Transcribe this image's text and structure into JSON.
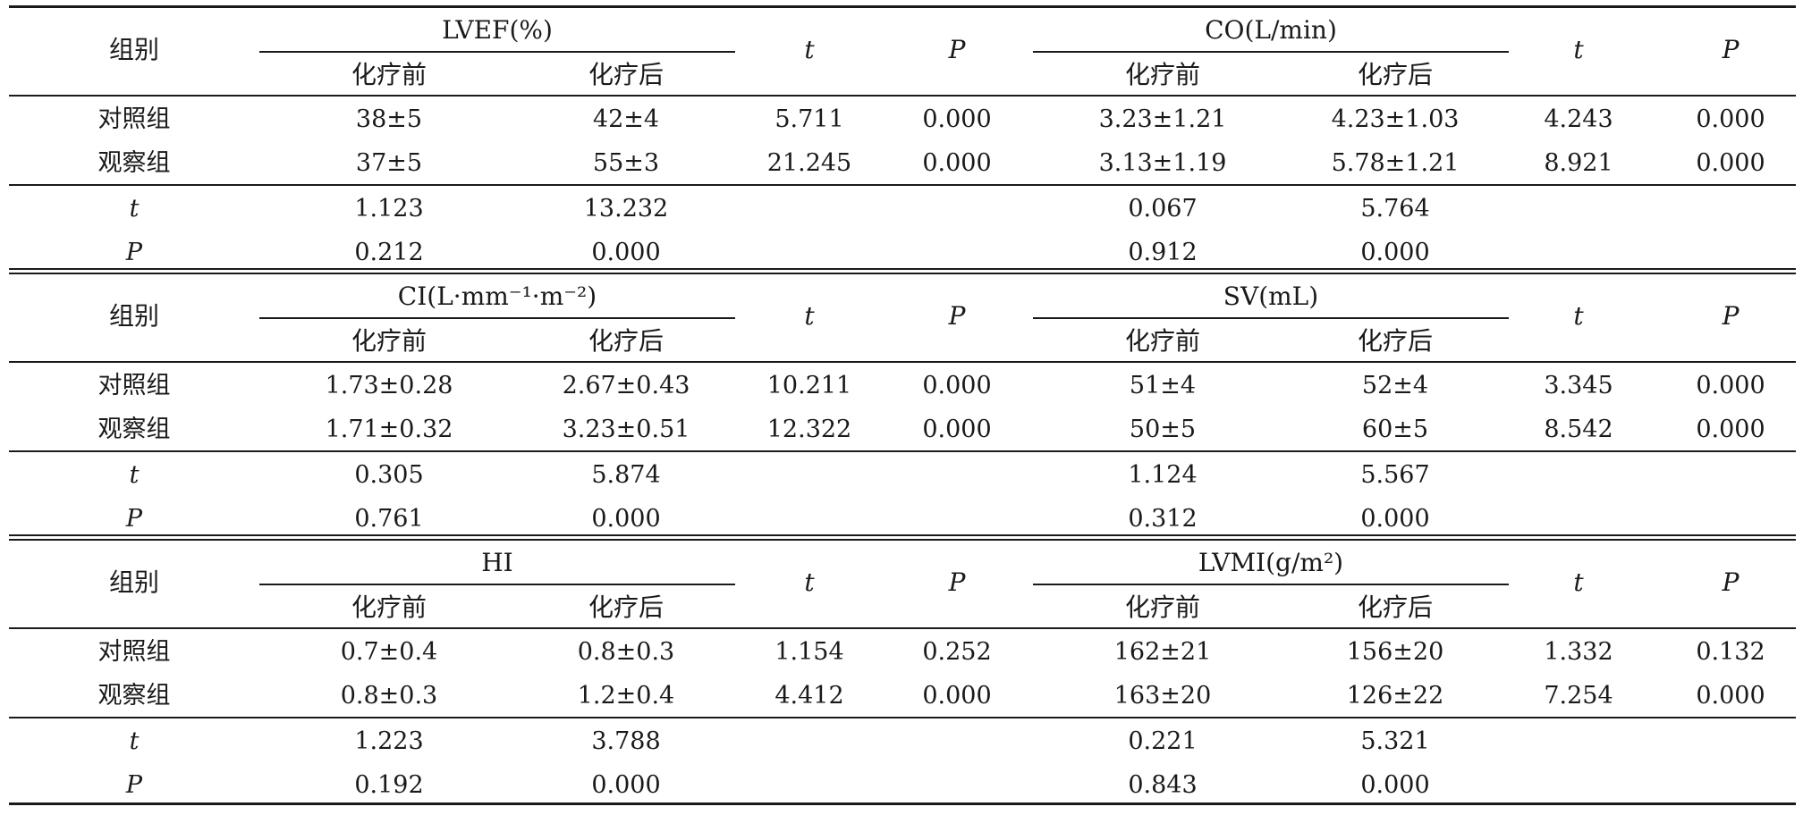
{
  "group_label": "组别",
  "before_label": "化疗前",
  "after_label": "化疗后",
  "t_label": "t",
  "p_label": "P",
  "row_labels": {
    "control": "对照组",
    "observe": "观察组"
  },
  "sections": [
    {
      "param_left": "LVEF(%)",
      "param_right": "CO(L/min)",
      "rows": [
        [
          "对照组",
          "38±5",
          "42±4",
          "5.711",
          "0.000",
          "3.23±1.21",
          "4.23±1.03",
          "4.243",
          "0.000"
        ],
        [
          "观察组",
          "37±5",
          "55±3",
          "21.245",
          "0.000",
          "3.13±1.19",
          "5.78±1.21",
          "8.921",
          "0.000"
        ]
      ],
      "t_row": [
        "t",
        "1.123",
        "13.232",
        "0.067",
        "5.764"
      ],
      "p_row": [
        "P",
        "0.212",
        "0.000",
        "0.912",
        "0.000"
      ]
    },
    {
      "param_left": "CI(L·mm⁻¹·m⁻²)",
      "param_right": "SV(mL)",
      "rows": [
        [
          "对照组",
          "1.73±0.28",
          "2.67±0.43",
          "10.211",
          "0.000",
          "51±4",
          "52±4",
          "3.345",
          "0.000"
        ],
        [
          "观察组",
          "1.71±0.32",
          "3.23±0.51",
          "12.322",
          "0.000",
          "50±5",
          "60±5",
          "8.542",
          "0.000"
        ]
      ],
      "t_row": [
        "t",
        "0.305",
        "5.874",
        "1.124",
        "5.567"
      ],
      "p_row": [
        "P",
        "0.761",
        "0.000",
        "0.312",
        "0.000"
      ]
    },
    {
      "param_left": "HI",
      "param_right": "LVMI(g/m²)",
      "rows": [
        [
          "对照组",
          "0.7±0.4",
          "0.8±0.3",
          "1.154",
          "0.252",
          "162±21",
          "156±20",
          "1.332",
          "0.132"
        ],
        [
          "观察组",
          "0.8±0.3",
          "1.2±0.4",
          "4.412",
          "0.000",
          "163±20",
          "126±22",
          "7.254",
          "0.000"
        ]
      ],
      "t_row": [
        "t",
        "1.223",
        "3.788",
        "0.221",
        "5.321"
      ],
      "p_row": [
        "P",
        "0.192",
        "0.000",
        "0.843",
        "0.000"
      ]
    }
  ]
}
